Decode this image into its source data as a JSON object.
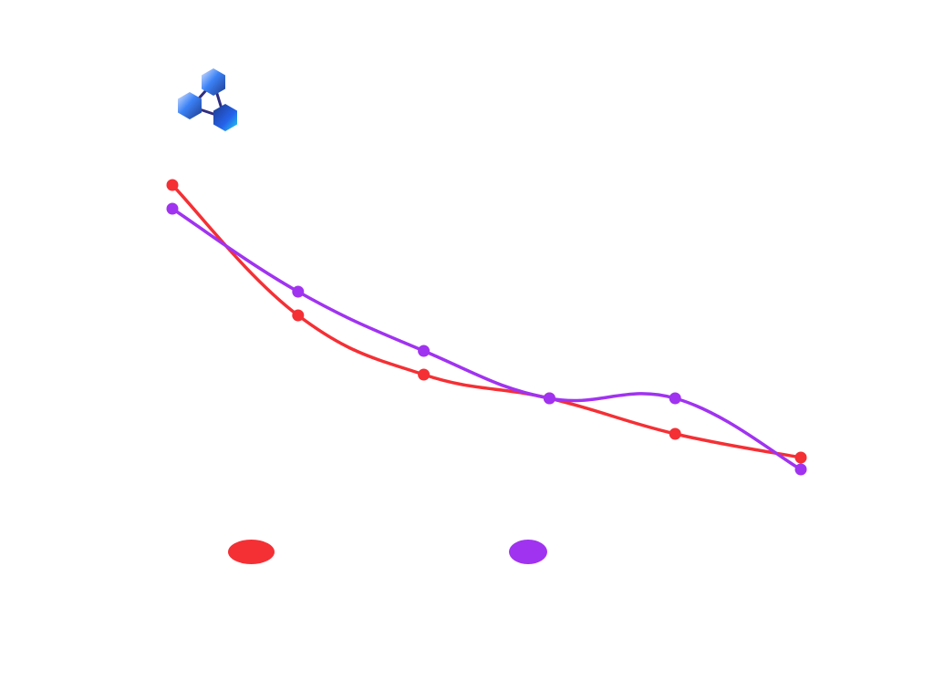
{
  "logo": {
    "icon": "hexagon-network-icon",
    "colors": [
      "#1d4ed8",
      "#38bdf8",
      "#c7d2fe",
      "#312e81"
    ]
  },
  "chart_data": {
    "type": "line",
    "title": "",
    "xlabel": "",
    "ylabel": "",
    "grid": false,
    "legend_placement": "bottom",
    "x": [
      1,
      2,
      3,
      4,
      5,
      6
    ],
    "ylim": [
      0,
      1
    ],
    "series": [
      {
        "color": "#f43035",
        "smooth": true,
        "values": [
          0.88,
          0.66,
          0.56,
          0.52,
          0.46,
          0.42
        ]
      },
      {
        "color": "#a033f0",
        "smooth": true,
        "values": [
          0.84,
          0.7,
          0.6,
          0.52,
          0.52,
          0.4
        ]
      }
    ]
  }
}
